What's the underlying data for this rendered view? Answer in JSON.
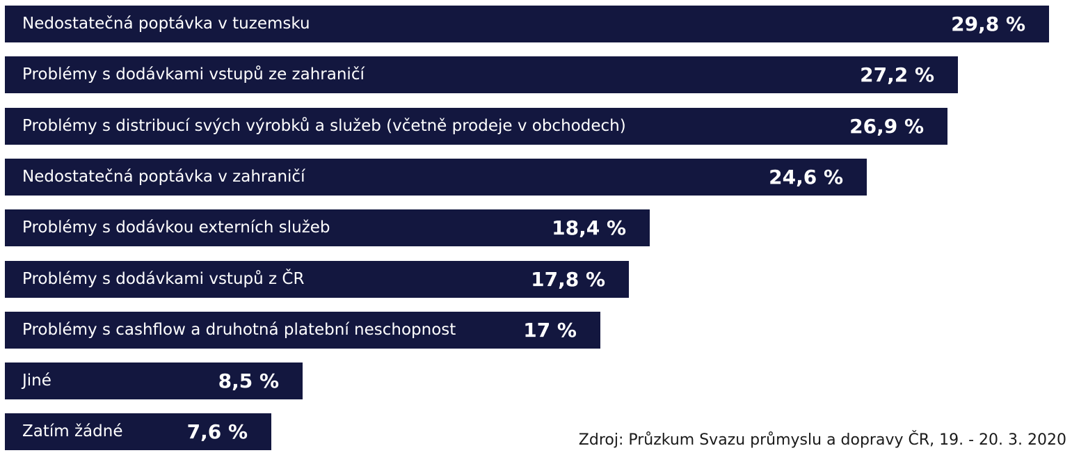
{
  "chart_data": {
    "type": "bar",
    "orientation": "horizontal",
    "categories": [
      "Nedostatečná poptávka v tuzemsku",
      "Problémy s dodávkami vstupů ze zahraničí",
      "Problémy s distribucí svých výrobků a služeb (včetně prodeje v obchodech)",
      "Nedostatečná poptávka v zahraničí",
      "Problémy s dodávkou externích služeb",
      "Problémy s dodávkami vstupů z ČR",
      "Problémy s cashflow a druhotná platební neschopnost",
      "Jiné",
      "Zatím žádné"
    ],
    "values": [
      29.8,
      27.2,
      26.9,
      24.6,
      18.4,
      17.8,
      17,
      8.5,
      7.6
    ],
    "value_labels": [
      "29,8 %",
      "27,2 %",
      "26,9 %",
      "24,6 %",
      "18,4 %",
      "17,8 %",
      "17 %",
      "8,5 %",
      "7,6 %"
    ],
    "bar_color": "#13173f",
    "text_color": "#ffffff",
    "grid": false,
    "legend": "none"
  },
  "source": "Zdroj: Průzkum Svazu průmyslu a dopravy ČR, 19. - 20. 3. 2020"
}
